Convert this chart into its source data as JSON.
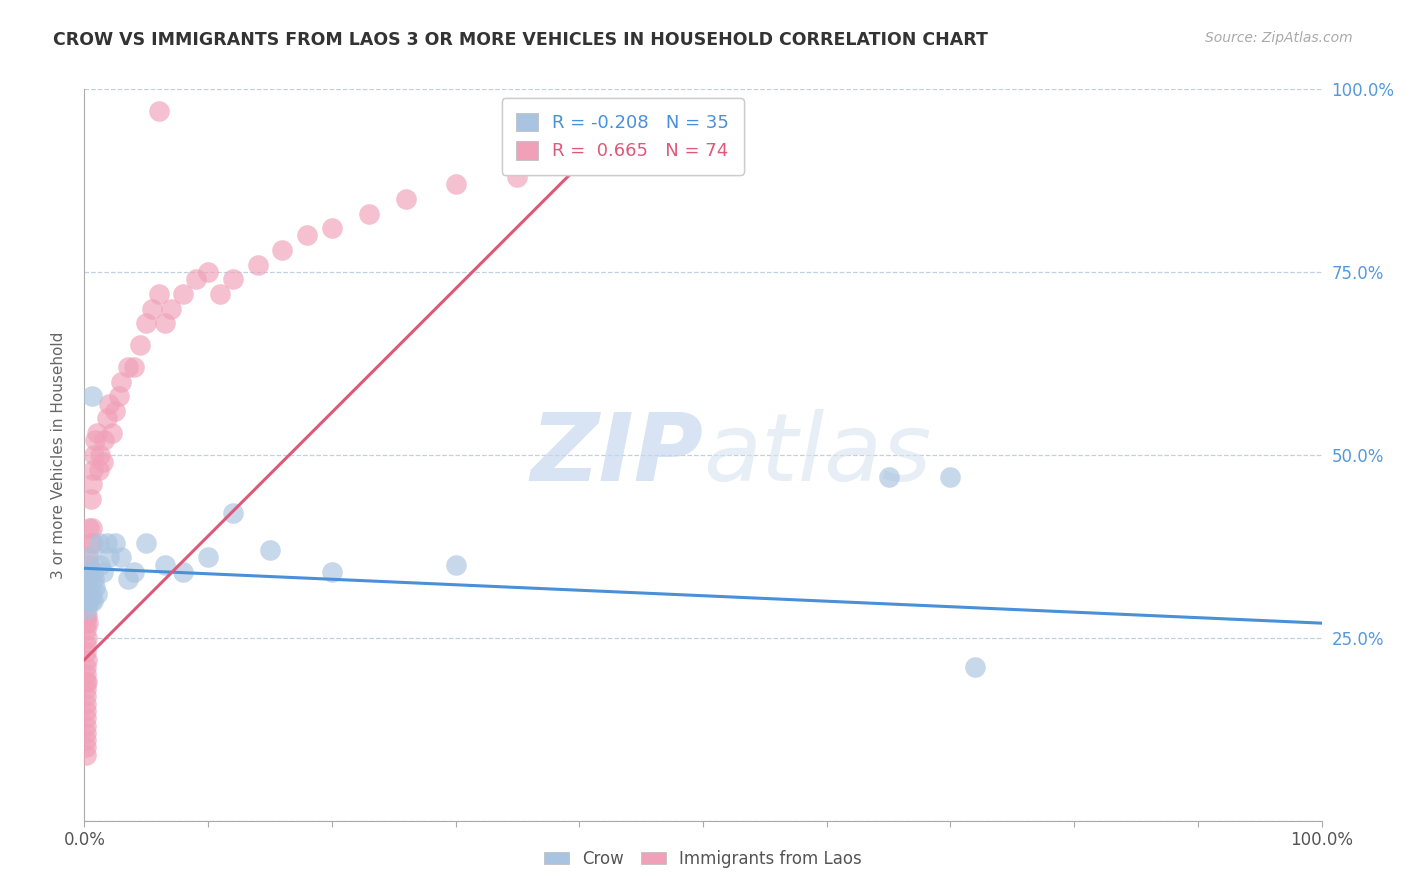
{
  "title": "CROW VS IMMIGRANTS FROM LAOS 3 OR MORE VEHICLES IN HOUSEHOLD CORRELATION CHART",
  "source": "Source: ZipAtlas.com",
  "ylabel": "3 or more Vehicles in Household",
  "legend_crow_r": "-0.208",
  "legend_crow_n": "35",
  "legend_laos_r": "0.665",
  "legend_laos_n": "74",
  "crow_color": "#a8c4e0",
  "laos_color": "#f0a0b8",
  "crow_line_color": "#4a90d9",
  "laos_line_color": "#e05878",
  "background_color": "#ffffff",
  "grid_color": "#c0d0e0",
  "watermark_zip": "ZIP",
  "watermark_atlas": "atlas",
  "crow_x": [
    0.002,
    0.002,
    0.003,
    0.003,
    0.004,
    0.004,
    0.005,
    0.005,
    0.006,
    0.006,
    0.007,
    0.007,
    0.008,
    0.009,
    0.01,
    0.012,
    0.013,
    0.015,
    0.018,
    0.02,
    0.025,
    0.03,
    0.035,
    0.04,
    0.05,
    0.065,
    0.08,
    0.1,
    0.12,
    0.15,
    0.2,
    0.3,
    0.65,
    0.7,
    0.72
  ],
  "crow_y": [
    0.32,
    0.29,
    0.34,
    0.3,
    0.36,
    0.31,
    0.33,
    0.3,
    0.58,
    0.31,
    0.34,
    0.3,
    0.33,
    0.32,
    0.31,
    0.38,
    0.35,
    0.34,
    0.38,
    0.36,
    0.38,
    0.36,
    0.33,
    0.34,
    0.38,
    0.35,
    0.34,
    0.36,
    0.42,
    0.37,
    0.34,
    0.35,
    0.47,
    0.47,
    0.21
  ],
  "laos_x": [
    0.001,
    0.001,
    0.001,
    0.001,
    0.001,
    0.001,
    0.001,
    0.001,
    0.001,
    0.001,
    0.001,
    0.001,
    0.001,
    0.001,
    0.001,
    0.001,
    0.001,
    0.001,
    0.001,
    0.001,
    0.002,
    0.002,
    0.002,
    0.002,
    0.002,
    0.002,
    0.003,
    0.003,
    0.003,
    0.003,
    0.004,
    0.004,
    0.005,
    0.005,
    0.006,
    0.006,
    0.007,
    0.007,
    0.008,
    0.009,
    0.01,
    0.012,
    0.013,
    0.015,
    0.016,
    0.018,
    0.02,
    0.022,
    0.025,
    0.028,
    0.03,
    0.035,
    0.04,
    0.045,
    0.05,
    0.055,
    0.06,
    0.065,
    0.07,
    0.08,
    0.09,
    0.1,
    0.11,
    0.12,
    0.14,
    0.16,
    0.18,
    0.2,
    0.23,
    0.26,
    0.3,
    0.35,
    0.4,
    0.06
  ],
  "laos_y": [
    0.32,
    0.3,
    0.28,
    0.27,
    0.26,
    0.24,
    0.23,
    0.21,
    0.2,
    0.19,
    0.18,
    0.17,
    0.16,
    0.15,
    0.14,
    0.13,
    0.12,
    0.11,
    0.1,
    0.09,
    0.34,
    0.31,
    0.28,
    0.25,
    0.22,
    0.19,
    0.36,
    0.33,
    0.3,
    0.27,
    0.4,
    0.35,
    0.44,
    0.38,
    0.46,
    0.4,
    0.48,
    0.38,
    0.5,
    0.52,
    0.53,
    0.48,
    0.5,
    0.49,
    0.52,
    0.55,
    0.57,
    0.53,
    0.56,
    0.58,
    0.6,
    0.62,
    0.62,
    0.65,
    0.68,
    0.7,
    0.72,
    0.68,
    0.7,
    0.72,
    0.74,
    0.75,
    0.72,
    0.74,
    0.76,
    0.78,
    0.8,
    0.81,
    0.83,
    0.85,
    0.87,
    0.88,
    0.9,
    0.97
  ],
  "crow_line_x": [
    0.0,
    1.0
  ],
  "crow_line_y": [
    0.345,
    0.27
  ],
  "laos_line_x": [
    0.0,
    0.42
  ],
  "laos_line_y": [
    0.22,
    0.93
  ],
  "xlim": [
    0.0,
    1.0
  ],
  "ylim": [
    0.0,
    1.0
  ],
  "xticks": [
    0.0,
    0.1,
    0.2,
    0.3,
    0.4,
    0.5,
    0.6,
    0.7,
    0.8,
    0.9,
    1.0
  ],
  "yticks": [
    0.0,
    0.25,
    0.5,
    0.75,
    1.0
  ]
}
